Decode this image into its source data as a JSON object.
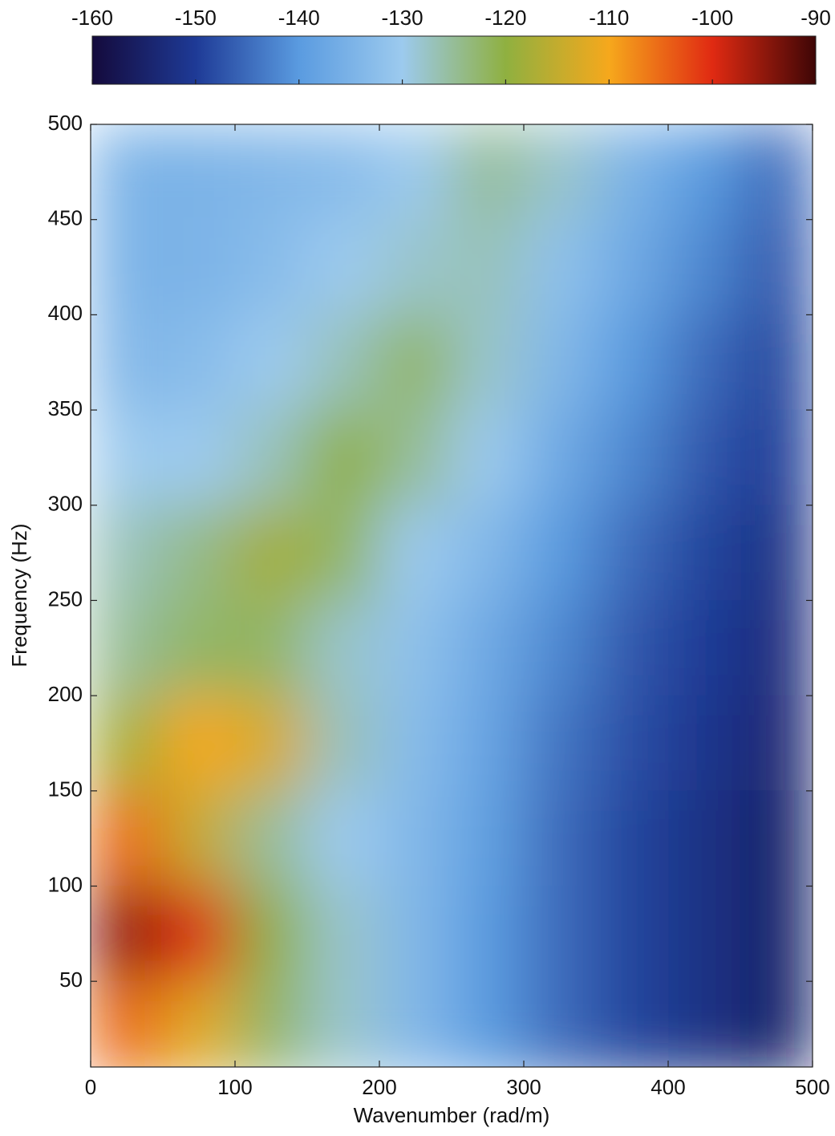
{
  "chart_data": {
    "type": "heatmap",
    "x_label": "Wavenumber (rad/m)",
    "y_label": "Frequency (Hz)",
    "xlim": [
      0,
      500
    ],
    "ylim": [
      5,
      500
    ],
    "xticks": [
      0,
      100,
      200,
      300,
      400,
      500
    ],
    "yticks": [
      50,
      100,
      150,
      200,
      250,
      300,
      350,
      400,
      450,
      500
    ],
    "x": [
      25,
      75,
      125,
      175,
      225,
      275,
      325,
      375,
      425,
      475
    ],
    "y": [
      475,
      425,
      375,
      325,
      275,
      225,
      175,
      125,
      75,
      25
    ],
    "z": [
      [
        -135,
        -135,
        -134,
        -133,
        -130,
        -125,
        -128,
        -135,
        -140,
        -145
      ],
      [
        -135,
        -135,
        -133,
        -130,
        -128,
        -127,
        -132,
        -137,
        -142,
        -147
      ],
      [
        -134,
        -133,
        -130,
        -127,
        -122,
        -128,
        -134,
        -140,
        -145,
        -149
      ],
      [
        -130,
        -130,
        -127,
        -120,
        -125,
        -130,
        -137,
        -142,
        -147,
        -150
      ],
      [
        -127,
        -124,
        -118,
        -122,
        -130,
        -134,
        -140,
        -145,
        -149,
        -152
      ],
      [
        -125,
        -122,
        -122,
        -128,
        -132,
        -137,
        -142,
        -147,
        -150,
        -153
      ],
      [
        -118,
        -110,
        -113,
        -127,
        -133,
        -138,
        -144,
        -148,
        -151,
        -154
      ],
      [
        -105,
        -115,
        -125,
        -130,
        -134,
        -139,
        -145,
        -149,
        -152,
        -155
      ],
      [
        -95,
        -100,
        -120,
        -128,
        -134,
        -140,
        -145,
        -149,
        -152,
        -155
      ],
      [
        -105,
        -112,
        -122,
        -128,
        -134,
        -140,
        -145,
        -149,
        -152,
        -155
      ]
    ],
    "clim": [
      -160,
      -90
    ],
    "cticks": [
      -160,
      -150,
      -140,
      -130,
      -120,
      -110,
      -100,
      -90
    ],
    "colormap": [
      "#140a3c",
      "#1e3a96",
      "#5a9be0",
      "#9ccaee",
      "#8fb040",
      "#f6a81c",
      "#e02a12",
      "#3e0606"
    ]
  }
}
